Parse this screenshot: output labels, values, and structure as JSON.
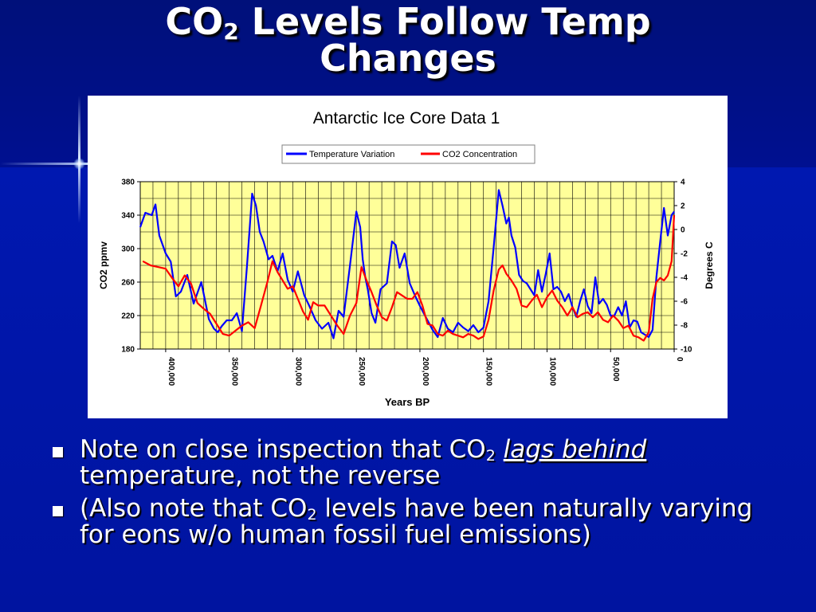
{
  "slide": {
    "title_line1_pre": "CO",
    "title_line1_sub": "2",
    "title_line1_post": " Levels Follow Temp",
    "title_line2": "Changes",
    "bullets": [
      {
        "pre": "Note on close inspection that CO",
        "sub": "2",
        "mid": " ",
        "emphasis": "lags behind",
        "post": " temperature, not the reverse"
      },
      {
        "pre": "(Also note that CO",
        "sub": "2",
        "post": " levels have been naturally varying for eons w/o human fossil fuel emissions)"
      }
    ],
    "colors": {
      "background": "#000a8c",
      "text": "#ffffff",
      "plot_background": "#ffff99",
      "temperature_line": "#0000ff",
      "co2_line": "#ff0000"
    }
  },
  "chart_data": {
    "type": "line",
    "title": "Antarctic Ice Core Data 1",
    "xlabel": "Years BP",
    "ylabel_left": "CO2 ppmv",
    "ylabel_right": "Degrees C",
    "xlim": [
      420000,
      0
    ],
    "x_reversed": true,
    "ylim_left": [
      180,
      380
    ],
    "ylim_right": [
      -10,
      4
    ],
    "x_ticks": [
      {
        "value": 400000,
        "label": "400,000"
      },
      {
        "value": 350000,
        "label": "350,000"
      },
      {
        "value": 300000,
        "label": "300,000"
      },
      {
        "value": 250000,
        "label": "250,000"
      },
      {
        "value": 200000,
        "label": "200,000"
      },
      {
        "value": 150000,
        "label": "150,000"
      },
      {
        "value": 100000,
        "label": "100,000"
      },
      {
        "value": 50000,
        "label": "50,000"
      },
      {
        "value": 0,
        "label": "0"
      }
    ],
    "y_ticks_left": [
      380,
      340,
      300,
      260,
      220,
      180
    ],
    "y_ticks_right": [
      4,
      2,
      0,
      -2,
      -4,
      -6,
      -8,
      -10
    ],
    "grid": true,
    "legend_position": "top-center",
    "series": [
      {
        "name": "Temperature Variation",
        "axis": "right",
        "color": "#0000ff",
        "x": [
          420000,
          416000,
          411000,
          408000,
          405000,
          400000,
          396000,
          392000,
          388000,
          383000,
          378000,
          372000,
          366000,
          362000,
          359000,
          356000,
          352000,
          348000,
          344000,
          340000,
          336000,
          332000,
          329000,
          326000,
          323000,
          319000,
          316000,
          312000,
          308000,
          304000,
          300000,
          296000,
          291000,
          287000,
          282000,
          277000,
          272000,
          268000,
          264000,
          260000,
          255000,
          250000,
          247000,
          245000,
          243000,
          241000,
          238000,
          235000,
          231000,
          226000,
          222000,
          219000,
          216000,
          212000,
          208000,
          204000,
          200000,
          196000,
          193000,
          190000,
          186000,
          182000,
          178000,
          174000,
          170000,
          166000,
          162000,
          158000,
          154000,
          150000,
          146000,
          142000,
          138000,
          135000,
          132000,
          130000,
          128000,
          125000,
          122000,
          119000,
          116000,
          113000,
          110000,
          107000,
          104000,
          101000,
          98000,
          95000,
          92000,
          89000,
          86000,
          83000,
          80000,
          77000,
          74000,
          71000,
          68000,
          65000,
          62000,
          59000,
          56000,
          53000,
          50000,
          47000,
          44000,
          41000,
          38000,
          35000,
          32000,
          29000,
          26000,
          23000,
          20000,
          17000,
          14000,
          11000,
          8000,
          5000,
          2000,
          0
        ],
        "values": [
          0.2,
          1.4,
          1.2,
          2.1,
          -0.5,
          -2.0,
          -2.7,
          -5.6,
          -5.2,
          -3.8,
          -6.2,
          -4.4,
          -7.5,
          -8.3,
          -8.6,
          -8.1,
          -7.6,
          -7.6,
          -7.0,
          -8.5,
          -3.0,
          3.0,
          2.0,
          -0.2,
          -1.0,
          -2.5,
          -2.2,
          -3.5,
          -2.0,
          -4.2,
          -5.2,
          -3.5,
          -5.5,
          -6.4,
          -7.6,
          -8.3,
          -7.8,
          -9.1,
          -6.8,
          -7.3,
          -3.0,
          1.5,
          0.2,
          -2.5,
          -4.0,
          -5.0,
          -7.0,
          -7.8,
          -5.0,
          -4.5,
          -1.0,
          -1.3,
          -3.2,
          -2.0,
          -4.5,
          -5.5,
          -6.4,
          -7.2,
          -7.8,
          -8.4,
          -9.0,
          -7.4,
          -8.3,
          -8.6,
          -7.8,
          -8.2,
          -8.5,
          -8.0,
          -8.6,
          -8.2,
          -6.0,
          -1.5,
          3.3,
          2.0,
          0.5,
          1.0,
          -0.5,
          -1.5,
          -3.8,
          -4.3,
          -4.5,
          -5.0,
          -5.5,
          -3.4,
          -5.2,
          -3.7,
          -2.0,
          -5.0,
          -4.8,
          -5.2,
          -6.0,
          -5.4,
          -6.5,
          -7.3,
          -6.0,
          -5.0,
          -6.4,
          -7.0,
          -4.0,
          -6.2,
          -5.8,
          -6.3,
          -7.2,
          -7.2,
          -6.5,
          -7.2,
          -6.0,
          -8.2,
          -7.6,
          -7.7,
          -8.6,
          -8.8,
          -9.0,
          -8.4,
          -4.0,
          -1.0,
          1.8,
          -0.5,
          1.2,
          1.5
        ]
      },
      {
        "name": "CO2 Concentration",
        "axis": "left",
        "color": "#ff0000",
        "x": [
          418000,
          412000,
          406000,
          400000,
          395000,
          390000,
          385000,
          380000,
          375000,
          370000,
          365000,
          360000,
          355000,
          350000,
          345000,
          340000,
          335000,
          330000,
          325000,
          320000,
          316000,
          312000,
          308000,
          304000,
          300000,
          296000,
          292000,
          288000,
          284000,
          280000,
          275000,
          270000,
          265000,
          260000,
          255000,
          250000,
          246000,
          242000,
          238000,
          234000,
          230000,
          226000,
          222000,
          218000,
          214000,
          210000,
          206000,
          202000,
          198000,
          194000,
          190000,
          186000,
          182000,
          178000,
          174000,
          170000,
          166000,
          162000,
          158000,
          154000,
          150000,
          146000,
          142000,
          138000,
          135000,
          132000,
          128000,
          124000,
          120000,
          116000,
          112000,
          108000,
          104000,
          100000,
          96000,
          92000,
          88000,
          84000,
          80000,
          76000,
          72000,
          68000,
          64000,
          60000,
          56000,
          52000,
          48000,
          44000,
          40000,
          36000,
          32000,
          28000,
          24000,
          20000,
          17000,
          14000,
          11000,
          8000,
          5000,
          2000,
          0
        ],
        "values": [
          285,
          280,
          278,
          276,
          265,
          255,
          268,
          258,
          235,
          228,
          222,
          210,
          198,
          196,
          202,
          208,
          212,
          205,
          232,
          260,
          285,
          272,
          262,
          252,
          255,
          240,
          225,
          215,
          236,
          232,
          232,
          220,
          208,
          198,
          220,
          235,
          278,
          262,
          248,
          232,
          218,
          214,
          230,
          248,
          244,
          240,
          240,
          248,
          232,
          210,
          208,
          198,
          196,
          202,
          198,
          196,
          194,
          198,
          196,
          192,
          195,
          215,
          250,
          275,
          280,
          270,
          262,
          252,
          232,
          230,
          238,
          245,
          230,
          242,
          250,
          238,
          230,
          220,
          230,
          218,
          222,
          224,
          218,
          224,
          215,
          212,
          220,
          214,
          205,
          208,
          196,
          194,
          190,
          200,
          240,
          260,
          265,
          262,
          268,
          285,
          340
        ]
      }
    ]
  }
}
